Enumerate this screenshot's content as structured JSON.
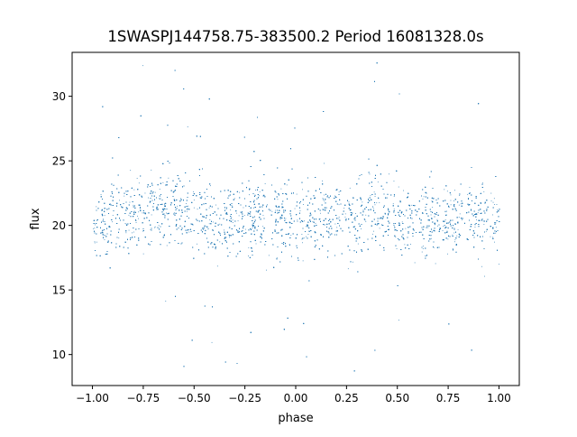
{
  "chart_data": {
    "type": "scatter",
    "title": "1SWASPJ144758.75-383500.2 Period 16081328.0s",
    "xlabel": "phase",
    "ylabel": "flux",
    "xlim": [
      -1.1,
      1.1
    ],
    "ylim": [
      7.6,
      33.4
    ],
    "x_ticks": [
      -1.0,
      -0.75,
      -0.5,
      -0.25,
      0.0,
      0.25,
      0.5,
      0.75,
      1.0
    ],
    "x_tick_labels": [
      "−1.00",
      "−0.75",
      "−0.50",
      "−0.25",
      "0.00",
      "0.25",
      "0.50",
      "0.75",
      "1.00"
    ],
    "y_ticks": [
      10,
      15,
      20,
      25,
      30
    ],
    "y_tick_labels": [
      "10",
      "15",
      "20",
      "25",
      "30"
    ],
    "grid": false,
    "marker_color": "#1f77b4",
    "series": [
      {
        "description_of_distribution": "phase-folded flux, mirrored over phase -1..0 and 0..1",
        "x_range": [
          -1.0,
          1.0
        ],
        "y_core_range": [
          15,
          26
        ],
        "y_center": 20.5,
        "y_outlier_range": [
          8.7,
          32.8
        ],
        "x": [
          -0.97,
          -0.9,
          -0.8,
          -0.72,
          -0.65,
          -0.55,
          -0.46,
          -0.38,
          -0.3,
          -0.2,
          -0.12,
          -0.05,
          0.03,
          0.1,
          0.2,
          0.28,
          0.35,
          0.42,
          0.5,
          0.6,
          0.7,
          0.8,
          0.9,
          0.97
        ],
        "y": [
          20.2,
          20.8,
          21.0,
          21.3,
          21.5,
          21.0,
          20.8,
          20.0,
          20.3,
          20.9,
          20.6,
          20.2,
          20.5,
          20.9,
          21.0,
          20.7,
          21.2,
          21.0,
          20.6,
          20.3,
          20.5,
          20.8,
          20.6,
          20.4
        ]
      }
    ]
  }
}
